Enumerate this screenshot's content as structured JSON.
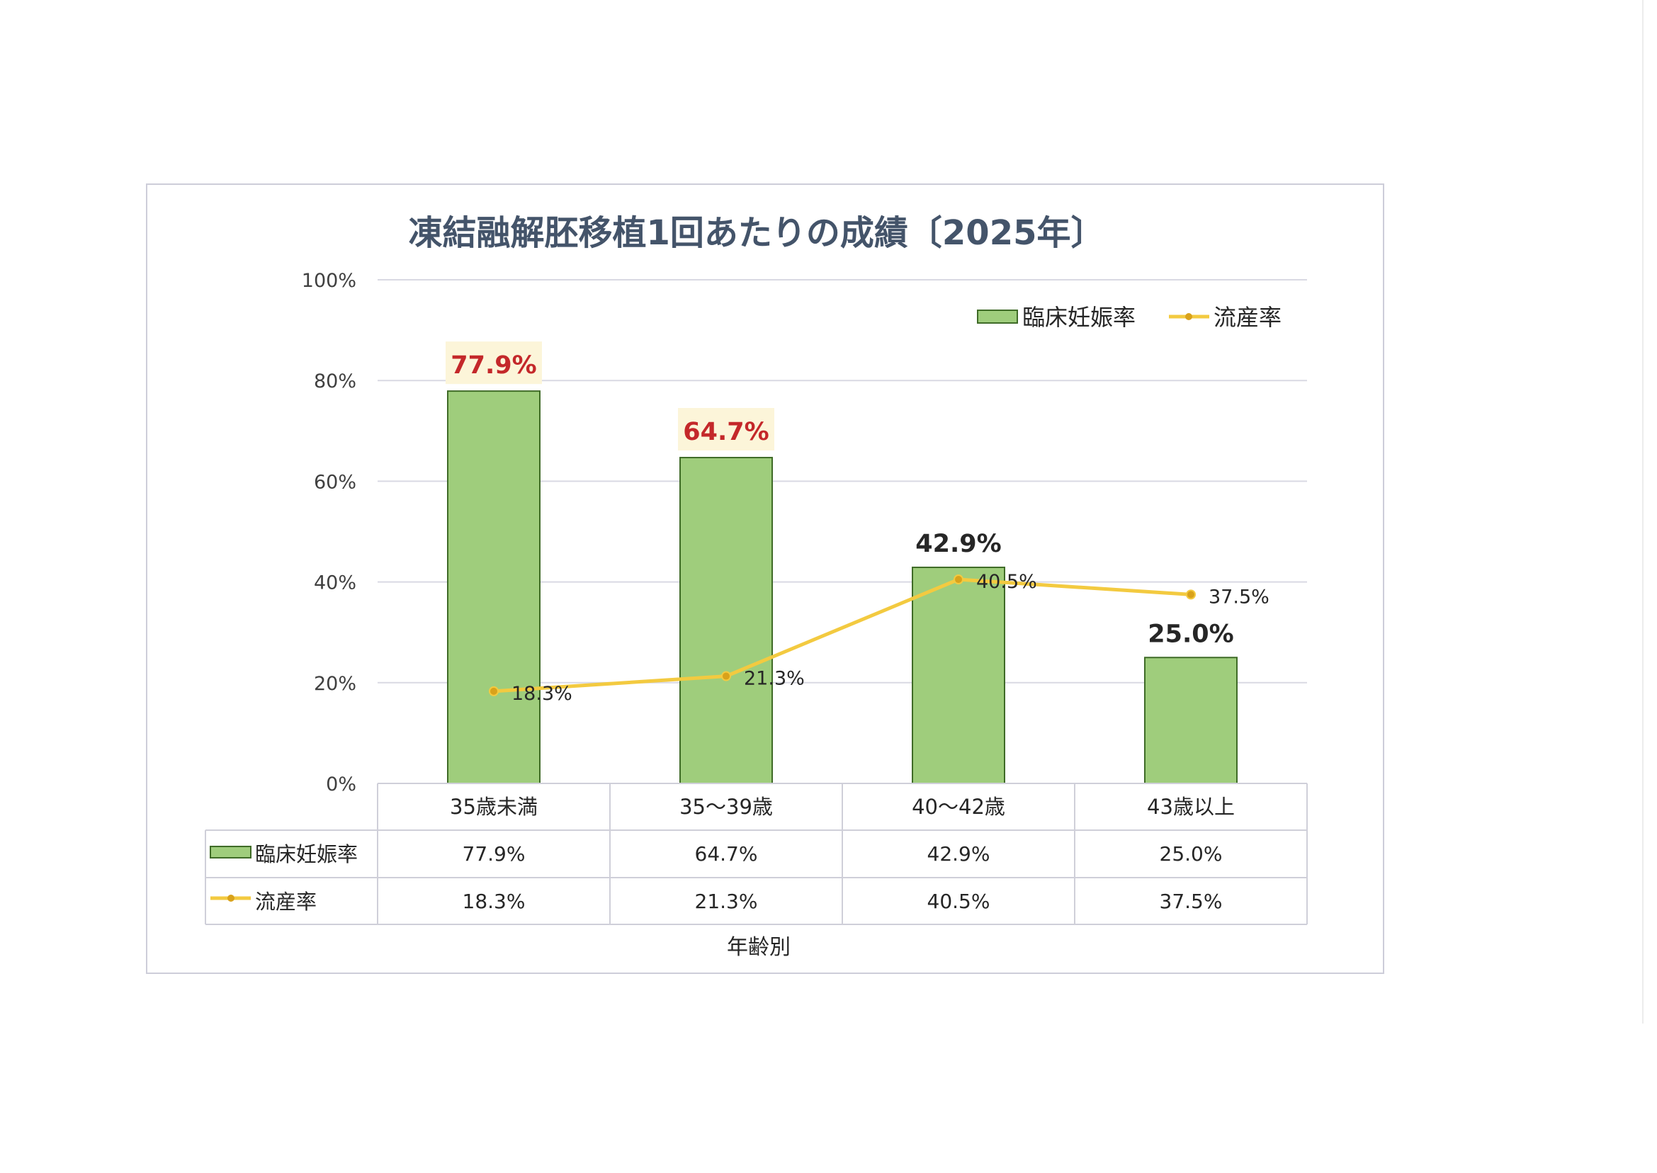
{
  "chart_data": {
    "type": "bar",
    "title": "凍結融解胚移植1回あたりの成績〔2025年〕",
    "xlabel": "年齢別",
    "ylabel": "",
    "unit": "%",
    "categories": [
      "35歳未満",
      "35～39歳",
      "40～42歳",
      "43歳以上"
    ],
    "ylim": [
      0,
      100
    ],
    "yticks": [
      0,
      20,
      40,
      60,
      80,
      100
    ],
    "grid": true,
    "legend": "top-right",
    "data_table": true,
    "series": [
      {
        "name": "臨床妊娠率",
        "type": "bar",
        "values": [
          77.9,
          64.7,
          42.9,
          25.0
        ],
        "color": "#9fcd7c",
        "border_color": "#3f6b27",
        "label_highlight": [
          true,
          true,
          false,
          false
        ]
      },
      {
        "name": "流産率",
        "type": "line",
        "values": [
          18.3,
          21.3,
          40.5,
          37.5
        ],
        "color": "#f3ca40",
        "marker_color": "#d9a21b"
      }
    ],
    "colors": {
      "title": "#44546a",
      "highlight_label": "#c4282a",
      "highlight_label_bg": "#fcf5d9",
      "label": "#262626",
      "grid": "#d9d9e3",
      "table_border": "#cfcfd9",
      "frame": "#cdcdd9"
    }
  }
}
